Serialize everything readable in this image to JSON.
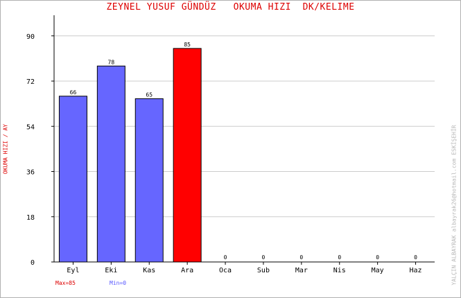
{
  "chart_data": {
    "type": "bar",
    "title": "ZEYNEL YUSUF GÜNDÜZ   OKUMA HIZI  DK/KELIME",
    "xlabel": "",
    "ylabel": "OKUMA HIZI / AY",
    "categories": [
      "Eyl",
      "Eki",
      "Kas",
      "Ara",
      "Oca",
      "Sub",
      "Mar",
      "Nis",
      "May",
      "Haz"
    ],
    "values": [
      66,
      78,
      65,
      85,
      0,
      0,
      0,
      0,
      0,
      0
    ],
    "yticks": [
      0,
      18,
      36,
      54,
      72,
      90
    ],
    "ylim": [
      0,
      96
    ],
    "grid": true,
    "colors": {
      "bar": "#6666ff",
      "max_bar": "#ff0000",
      "grid": "#cccccc"
    }
  },
  "notes": {
    "max": "Max=85",
    "min": "Min=0",
    "credit": "YALÇIN ALBAYRAK   albayrak26@hotmail.com   ESKİŞEHİR"
  }
}
